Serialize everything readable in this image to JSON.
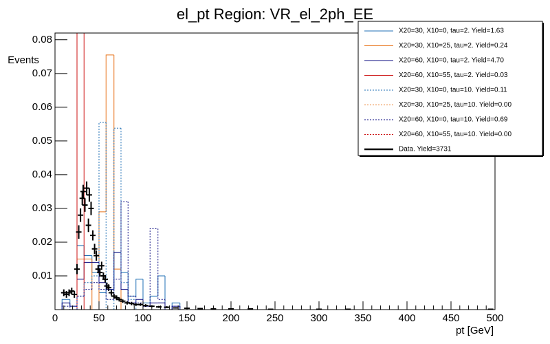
{
  "chart_data": {
    "type": "step-histogram",
    "title": "el_pt Region: VR_el_2ph_EE",
    "x_label": "pt [GeV]",
    "y_label": "Events",
    "xlim": [
      0,
      500
    ],
    "ylim": [
      0,
      0.082
    ],
    "xticks": [
      0,
      50,
      100,
      150,
      200,
      250,
      300,
      350,
      400,
      450,
      500
    ],
    "yticks": [
      0.01,
      0.02,
      0.03,
      0.04,
      0.05,
      0.06,
      0.07,
      0.08
    ],
    "bins": [
      0,
      8,
      17,
      25,
      33,
      42,
      50,
      58,
      67,
      75,
      83,
      92,
      100,
      108,
      117,
      125,
      133,
      142,
      150
    ],
    "series": [
      {
        "name": "X20=30, X10=0, tau=2. Yield=1.63",
        "color": "#1f6fb4",
        "linestyle": "solid",
        "values": [
          0,
          0.003,
          0.001,
          0.019,
          0.016,
          0.011,
          0.005,
          0.006,
          0.017,
          0.011,
          0.004,
          0.009,
          0.002,
          0.004,
          0.01,
          0,
          0.002,
          0
        ]
      },
      {
        "name": "X20=30, X10=25, tau=2. Yield=0.24",
        "color": "#e8731a",
        "linestyle": "solid",
        "values": [
          0,
          0,
          0,
          0.015,
          0.015,
          0,
          0.029,
          0.0755,
          0.012,
          0,
          0,
          0,
          0,
          0,
          0,
          0,
          0,
          0
        ]
      },
      {
        "name": "X20=60, X10=0, tau=2. Yield=4.70",
        "color": "#0a0a80",
        "linestyle": "solid",
        "values": [
          0,
          0.002,
          0.001,
          0.009,
          0.014,
          0.014,
          0.008,
          0.006,
          0.017,
          0.006,
          0.002,
          0.003,
          0.001,
          0.002,
          0.002,
          0,
          0.001,
          0
        ]
      },
      {
        "name": "X20=60, X10=55, tau=2. Yield=0.03",
        "color": "#cc1010",
        "linestyle": "solid",
        "values": [
          0,
          0,
          0,
          0.082,
          0,
          0,
          0,
          0,
          0,
          0,
          0,
          0,
          0,
          0,
          0,
          0,
          0,
          0
        ]
      },
      {
        "name": "X20=30, X10=0, tau=10. Yield=0.11",
        "color": "#1f6fb4",
        "linestyle": "dotted",
        "values": [
          0,
          0,
          0,
          0.004,
          0.008,
          0.01,
          0.0555,
          0,
          0.0538,
          0.008,
          0.003,
          0,
          0,
          0,
          0,
          0,
          0,
          0
        ]
      },
      {
        "name": "X20=30, X10=25, tau=10. Yield=0.00",
        "color": "#e8731a",
        "linestyle": "dotted",
        "values": [
          0,
          0,
          0,
          0,
          0,
          0,
          0,
          0,
          0,
          0,
          0,
          0,
          0,
          0,
          0,
          0,
          0,
          0
        ]
      },
      {
        "name": "X20=60, X10=0, tau=10. Yield=0.69",
        "color": "#0a0a80",
        "linestyle": "dotted",
        "values": [
          0,
          0.001,
          0,
          0.004,
          0.006,
          0.008,
          0.006,
          0.003,
          0.009,
          0.032,
          0.004,
          0.002,
          0.001,
          0.024,
          0.003,
          0,
          0.001,
          0
        ]
      },
      {
        "name": "X20=60, X10=55, tau=10. Yield=0.00",
        "color": "#cc1010",
        "linestyle": "dotted",
        "values": [
          0,
          0,
          0,
          0,
          0,
          0,
          0,
          0,
          0,
          0,
          0,
          0,
          0,
          0,
          0,
          0,
          0,
          0
        ]
      }
    ],
    "data": {
      "name": "Data. Yield=3731",
      "color": "#000000",
      "x": [
        10,
        13,
        16,
        19,
        22,
        25,
        27,
        29,
        31,
        32,
        34,
        36,
        38,
        39,
        41,
        43,
        45,
        47,
        49,
        51,
        53,
        55,
        57,
        59,
        61,
        64,
        67,
        70,
        73,
        77,
        82,
        87,
        92,
        97,
        103,
        110,
        118,
        127,
        137,
        150,
        165,
        180,
        200,
        222,
        245,
        300,
        333,
        495
      ],
      "values": [
        0.005,
        0.0045,
        0.005,
        0.0055,
        0.0045,
        0.012,
        0.023,
        0.028,
        0.033,
        0.035,
        0.031,
        0.036,
        0.025,
        0.034,
        0.03,
        0.022,
        0.018,
        0.016,
        0.012,
        0.011,
        0.013,
        0.01,
        0.009,
        0.007,
        0.0065,
        0.005,
        0.004,
        0.0035,
        0.003,
        0.0025,
        0.002,
        0.0018,
        0.0015,
        0.0015,
        0.0012,
        0.001,
        0.0008,
        0.0007,
        0.0005,
        0.0004,
        0.0003,
        0.0002,
        0.0002,
        0.0002,
        0.0001,
        0.0001,
        0.0001,
        0.0001
      ],
      "errors": [
        0.001,
        0.001,
        0.001,
        0.001,
        0.001,
        0.0015,
        0.002,
        0.002,
        0.002,
        0.002,
        0.002,
        0.002,
        0.002,
        0.002,
        0.002,
        0.0015,
        0.0015,
        0.0015,
        0.0012,
        0.0012,
        0.0012,
        0.001,
        0.001,
        0.001,
        0.001,
        0.0008,
        0.0007,
        0.0007,
        0.0006,
        0.0005,
        0.0005,
        0.0005,
        0.0004,
        0.0004,
        0.0004,
        0.0003,
        0.0003,
        0.0003,
        0.0002,
        0.0002,
        0.0002,
        0.0001,
        0.0001,
        0.0001,
        0.0001,
        0.0001,
        0.0001,
        0.0001
      ]
    }
  }
}
